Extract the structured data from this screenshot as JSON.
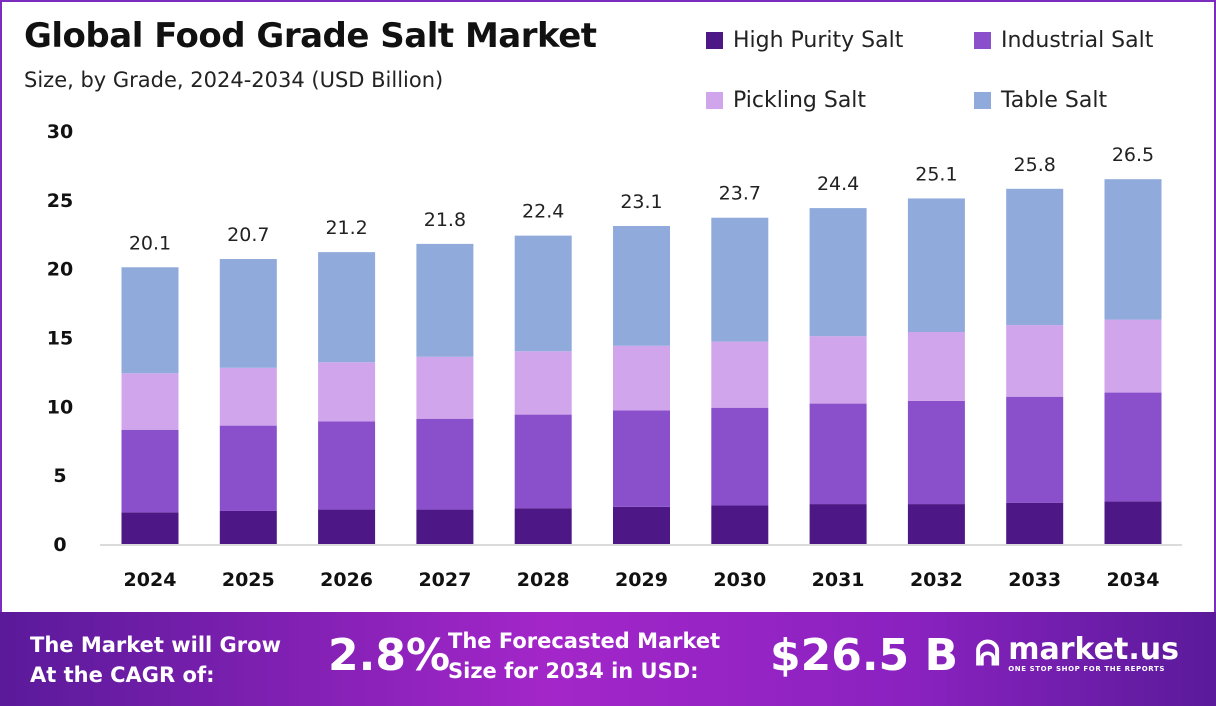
{
  "chart_data": {
    "type": "bar",
    "stacked": true,
    "title": "Global Food Grade Salt Market",
    "subtitle": "Size, by Grade, 2024-2034 (USD Billion)",
    "categories": [
      "2024",
      "2025",
      "2026",
      "2027",
      "2028",
      "2029",
      "2030",
      "2031",
      "2032",
      "2033",
      "2034"
    ],
    "series": [
      {
        "name": "High Purity Salt",
        "color": "#4e1786",
        "values": [
          2.3,
          2.4,
          2.5,
          2.5,
          2.6,
          2.7,
          2.8,
          2.9,
          2.9,
          3.0,
          3.1
        ]
      },
      {
        "name": "Industrial Salt",
        "color": "#8a4fcb",
        "values": [
          6.0,
          6.2,
          6.4,
          6.6,
          6.8,
          7.0,
          7.1,
          7.3,
          7.5,
          7.7,
          7.9
        ]
      },
      {
        "name": "Pickling Salt",
        "color": "#d1a5ec",
        "values": [
          4.1,
          4.2,
          4.3,
          4.5,
          4.6,
          4.7,
          4.8,
          4.9,
          5.0,
          5.2,
          5.3
        ]
      },
      {
        "name": "Table Salt",
        "color": "#8faadb",
        "values": [
          7.7,
          7.9,
          8.0,
          8.2,
          8.4,
          8.7,
          9.0,
          9.3,
          9.7,
          9.9,
          10.2
        ]
      }
    ],
    "totals": [
      "20.1",
      "20.7",
      "21.2",
      "21.8",
      "22.4",
      "23.1",
      "23.7",
      "24.4",
      "25.1",
      "25.8",
      "26.5"
    ],
    "yticks": [
      "0",
      "5",
      "10",
      "15",
      "20",
      "25",
      "30"
    ],
    "ylim": [
      0,
      30
    ],
    "grid": false,
    "legend_placement": "top-right"
  },
  "footer": {
    "cagr_label": "The Market will Grow At the CAGR of:",
    "cagr_value": "2.8%",
    "forecast_label": "The Forecasted Market Size for 2034 in USD:",
    "forecast_value": "$26.5 B",
    "logo_name": "market.us",
    "logo_tagline": "ONE STOP SHOP FOR THE REPORTS"
  }
}
